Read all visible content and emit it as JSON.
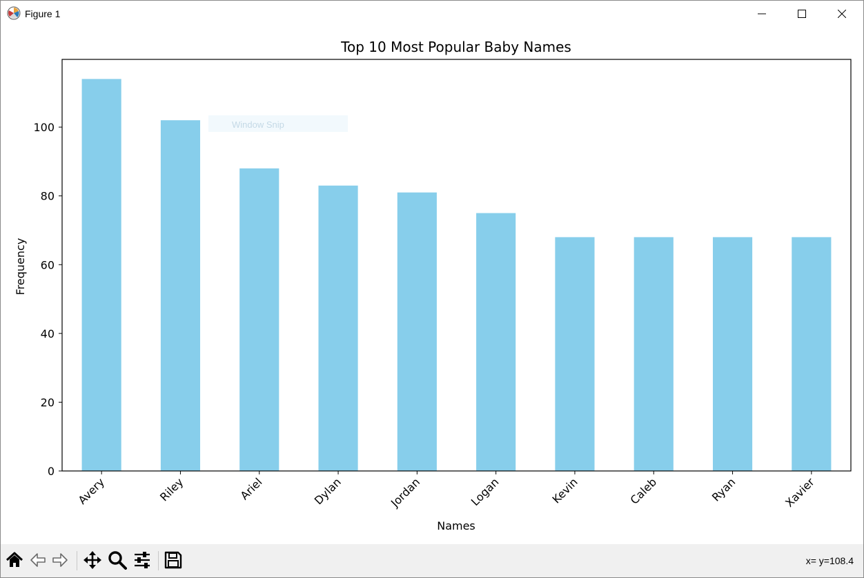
{
  "window": {
    "title": "Figure 1",
    "controls": [
      "minimize",
      "maximize",
      "close"
    ]
  },
  "overlay": {
    "text": "Window Snip"
  },
  "toolbar": {
    "tools": [
      "home-icon",
      "back-icon",
      "forward-icon",
      "pan-icon",
      "zoom-icon",
      "configure-subplots-icon",
      "save-icon"
    ],
    "coords_text": "x= y=108.4"
  },
  "colors": {
    "bar": "#87ceeb",
    "toolbar_bg": "#f0f0f0",
    "overlay_bg": "#f2f9fd"
  },
  "chart_data": {
    "type": "bar",
    "title": "Top 10 Most Popular Baby Names",
    "xlabel": "Names",
    "ylabel": "Frequency",
    "categories": [
      "Avery",
      "Riley",
      "Ariel",
      "Dylan",
      "Jordan",
      "Logan",
      "Kevin",
      "Caleb",
      "Ryan",
      "Xavier"
    ],
    "values": [
      114,
      102,
      88,
      83,
      81,
      75,
      68,
      68,
      68,
      68
    ],
    "yticks": [
      0,
      20,
      40,
      60,
      80,
      100
    ],
    "ylim": [
      0,
      119.7
    ],
    "grid": false,
    "legend": "none"
  }
}
